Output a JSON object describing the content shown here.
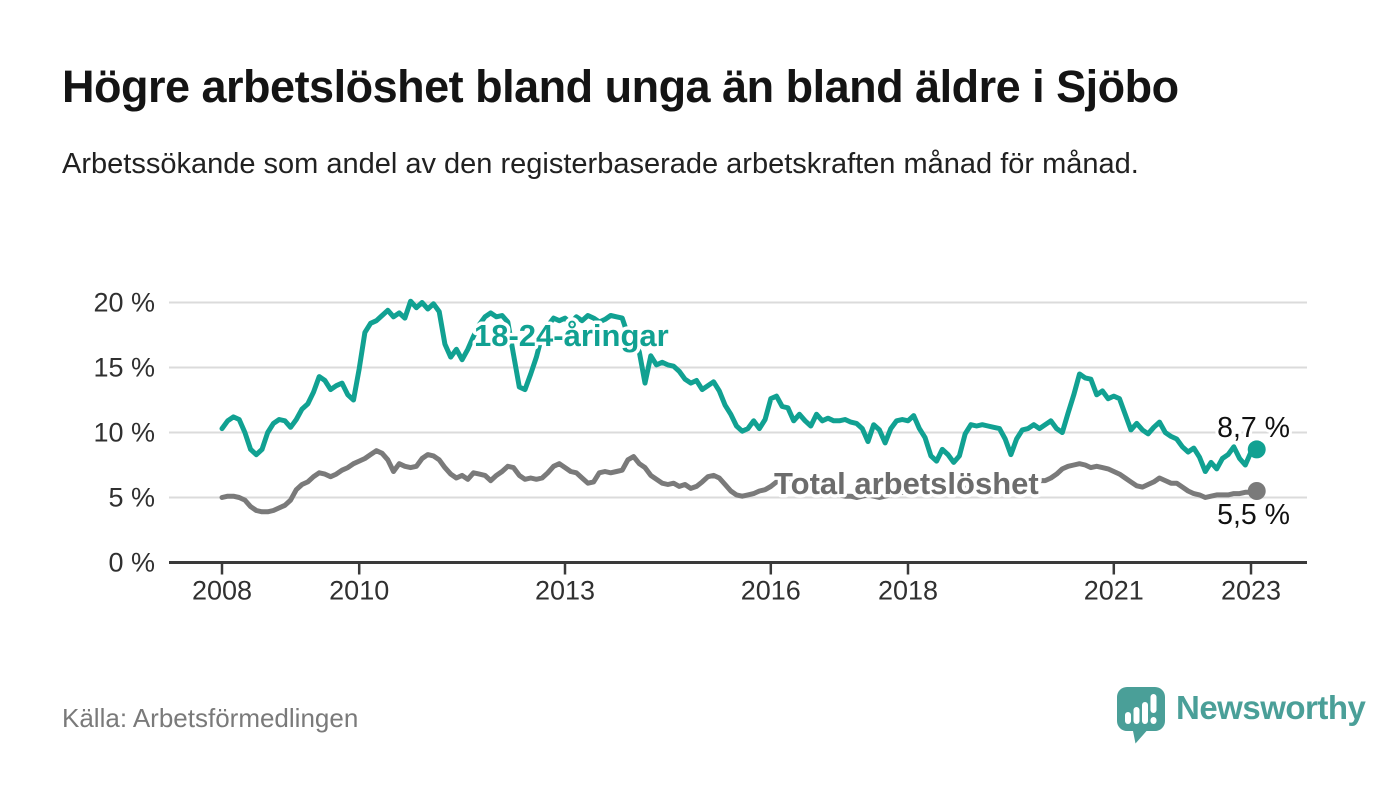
{
  "title": "Högre arbetslöshet bland unga än bland äldre i Sjöbo",
  "subtitle": "Arbetssökande som andel av den registerbaserade arbetskraften månad för månad.",
  "source": "Källa: Arbetsförmedlingen",
  "branding": {
    "name": "Newsworthy",
    "color": "#4a9f98",
    "icon": "newsworthy-logo-icon"
  },
  "colors": {
    "background": "#ffffff",
    "gridline": "#dbdbdb",
    "axis_line": "#3a3a3a",
    "axis_text": "#303030",
    "value_label_text": "#111111",
    "young_series": "#11a192",
    "total_series": "#7a7a7a",
    "total_label": "#6c6c6c"
  },
  "chart_data": {
    "type": "line",
    "title": "Högre arbetslöshet bland unga än bland äldre i Sjöbo",
    "subtitle": "Arbetssökande som andel av den registerbaserade arbetskraften månad för månad.",
    "x_unit": "month",
    "x_start": "2008-01",
    "x_end": "2023-02",
    "grid": "horizontal-only",
    "legend_position": "inline-labels",
    "y_axis": {
      "ticks": [
        "0 %",
        "5 %",
        "10 %",
        "15 %",
        "20 %"
      ],
      "tick_values": [
        0,
        5,
        10,
        15,
        20
      ],
      "range": [
        0,
        21
      ]
    },
    "x_axis": {
      "tick_years": [
        2008,
        2010,
        2013,
        2016,
        2018,
        2021,
        2023
      ]
    },
    "series": [
      {
        "name": "18-24-åringar",
        "color": "#11a192",
        "end_label": "8,7 %",
        "end_value": 8.7,
        "values": [
          10.3,
          10.9,
          11.2,
          11.0,
          10.0,
          8.7,
          8.3,
          8.7,
          10.0,
          10.7,
          11.0,
          10.9,
          10.4,
          11.0,
          11.8,
          12.2,
          13.1,
          14.3,
          14.0,
          13.3,
          13.6,
          13.8,
          12.9,
          12.5,
          14.9,
          17.7,
          18.4,
          18.6,
          19.0,
          19.4,
          18.9,
          19.2,
          18.8,
          20.1,
          19.6,
          20.0,
          19.5,
          19.9,
          19.3,
          16.8,
          15.8,
          16.4,
          15.6,
          16.4,
          17.4,
          18.3,
          18.9,
          19.2,
          18.9,
          19.0,
          18.5,
          16.0,
          13.5,
          13.3,
          14.5,
          15.8,
          17.5,
          18.2,
          18.8,
          18.6,
          18.8,
          18.4,
          18.9,
          18.6,
          19.0,
          18.8,
          18.5,
          18.7,
          19.0,
          18.9,
          18.8,
          17.5,
          17.1,
          16.2,
          13.8,
          15.9,
          15.2,
          15.4,
          15.2,
          15.1,
          14.7,
          14.1,
          13.8,
          14.0,
          13.3,
          13.6,
          13.9,
          13.2,
          12.1,
          11.4,
          10.5,
          10.1,
          10.3,
          10.9,
          10.3,
          11.0,
          12.6,
          12.8,
          12.0,
          11.9,
          10.9,
          11.4,
          10.9,
          10.5,
          11.4,
          10.9,
          11.1,
          10.9,
          10.9,
          11.0,
          10.8,
          10.7,
          10.3,
          9.3,
          10.6,
          10.2,
          9.2,
          10.3,
          10.9,
          11.0,
          10.9,
          11.3,
          10.3,
          9.6,
          8.2,
          7.8,
          8.7,
          8.3,
          7.7,
          8.2,
          9.9,
          10.6,
          10.5,
          10.6,
          10.5,
          10.4,
          10.3,
          9.5,
          8.3,
          9.5,
          10.2,
          10.3,
          10.6,
          10.3,
          10.6,
          10.9,
          10.3,
          10.0,
          11.5,
          12.9,
          14.5,
          14.2,
          14.1,
          12.9,
          13.2,
          12.6,
          12.8,
          12.6,
          11.4,
          10.2,
          10.7,
          10.2,
          9.9,
          10.4,
          10.8,
          10.0,
          9.7,
          9.5,
          8.9,
          8.5,
          8.8,
          8.1,
          7.0,
          7.7,
          7.2,
          8.0,
          8.3,
          8.9,
          8.0,
          7.5,
          8.5,
          8.7
        ]
      },
      {
        "name": "Total arbetslöshet",
        "color": "#7a7a7a",
        "end_label": "5,5 %",
        "end_value": 5.5,
        "values": [
          5.0,
          5.1,
          5.1,
          5.0,
          4.8,
          4.3,
          4.0,
          3.9,
          3.9,
          4.0,
          4.2,
          4.4,
          4.8,
          5.6,
          6.0,
          6.2,
          6.6,
          6.9,
          6.8,
          6.6,
          6.8,
          7.1,
          7.3,
          7.6,
          7.8,
          8.0,
          8.3,
          8.6,
          8.4,
          7.9,
          7.0,
          7.6,
          7.4,
          7.3,
          7.4,
          8.0,
          8.3,
          8.2,
          7.9,
          7.3,
          6.8,
          6.5,
          6.7,
          6.4,
          6.9,
          6.8,
          6.7,
          6.3,
          6.7,
          7.0,
          7.4,
          7.3,
          6.7,
          6.4,
          6.5,
          6.4,
          6.5,
          6.9,
          7.4,
          7.6,
          7.3,
          7.0,
          6.9,
          6.5,
          6.1,
          6.2,
          6.9,
          7.0,
          6.9,
          7.0,
          7.1,
          7.9,
          8.15,
          7.6,
          7.3,
          6.7,
          6.4,
          6.1,
          6.0,
          6.1,
          5.85,
          6.0,
          5.7,
          5.85,
          6.2,
          6.6,
          6.7,
          6.5,
          6.0,
          5.5,
          5.2,
          5.1,
          5.2,
          5.3,
          5.5,
          5.6,
          5.85,
          6.2,
          6.4,
          6.2,
          6.4,
          6.3,
          6.0,
          5.8,
          5.6,
          5.4,
          5.3,
          5.2,
          5.2,
          5.1,
          5.1,
          5.0,
          5.1,
          5.2,
          5.1,
          5.0,
          5.1,
          5.2,
          5.3,
          5.4,
          5.5,
          5.6,
          5.5,
          5.4,
          5.3,
          5.2,
          5.3,
          5.4,
          5.5,
          5.6,
          5.7,
          5.8,
          5.9,
          6.0,
          5.9,
          5.8,
          5.9,
          6.0,
          6.1,
          6.0,
          6.1,
          6.2,
          6.3,
          6.3,
          6.3,
          6.5,
          6.8,
          7.2,
          7.4,
          7.5,
          7.6,
          7.5,
          7.3,
          7.4,
          7.3,
          7.2,
          7.0,
          6.8,
          6.5,
          6.2,
          5.9,
          5.8,
          6.0,
          6.2,
          6.5,
          6.3,
          6.1,
          6.1,
          5.8,
          5.5,
          5.3,
          5.2,
          5.0,
          5.1,
          5.2,
          5.2,
          5.2,
          5.3,
          5.3,
          5.4,
          5.4,
          5.5
        ]
      }
    ]
  }
}
